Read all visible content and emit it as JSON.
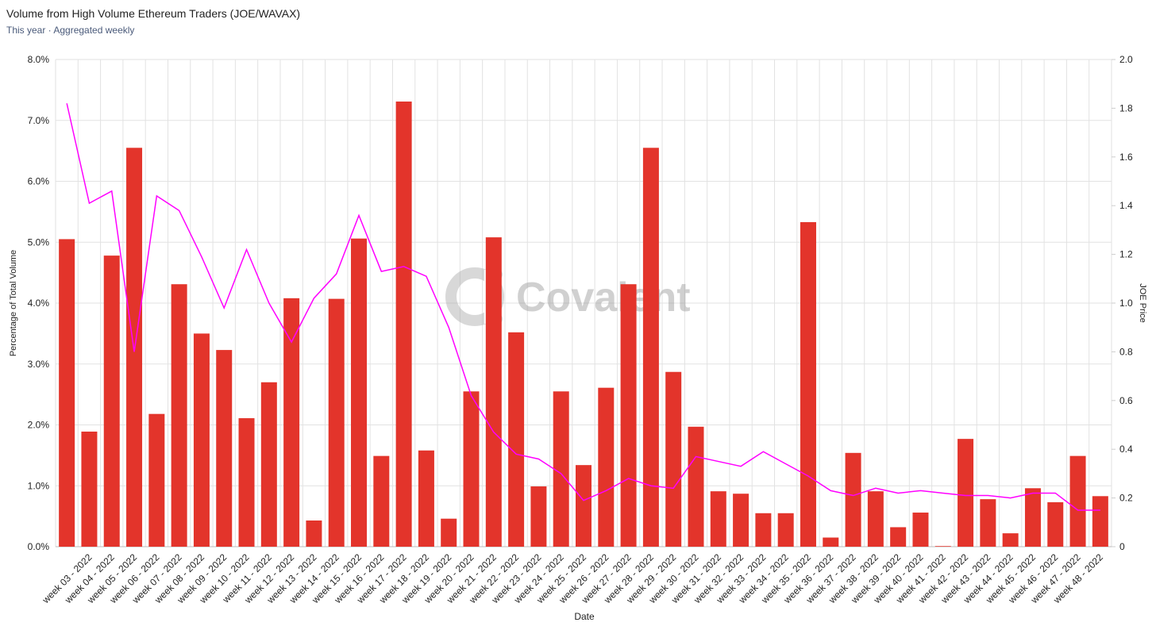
{
  "chart_data": {
    "type": "bar_line",
    "title": "Volume from High Volume Ethereum Traders (JOE/WAVAX)",
    "subtitle": "This year · Aggregated weekly",
    "watermark": "Covalent",
    "xlabel": "Date",
    "ylabel": "Percentage of Total Volume",
    "y2label": "JOE Price",
    "categories": [
      null,
      "week 03 - 2022",
      "week 04 - 2022",
      "week 05 - 2022",
      "week 06 - 2022",
      "week 07 - 2022",
      "week 08 - 2022",
      "week 09 - 2022",
      "week 10 - 2022",
      "week 11 - 2022",
      "week 12 - 2022",
      "week 13 - 2022",
      "week 14 - 2022",
      "week 15 - 2022",
      "week 16 - 2022",
      "week 17 - 2022",
      "week 18 - 2022",
      "week 19 - 2022",
      "week 20 - 2022",
      "week 21 - 2022",
      "week 22 - 2022",
      "week 23 - 2022",
      "week 24 - 2022",
      "week 25 - 2022",
      "week 26 - 2022",
      "week 27 - 2022",
      "week 28 - 2022",
      "week 29 - 2022",
      "week 30 - 2022",
      "week 31 - 2022",
      "week 32 - 2022",
      "week 33 - 2022",
      "week 34 - 2022",
      "week 35 - 2022",
      "week 36 - 2022",
      "week 37 - 2022",
      "week 38 - 2022",
      "week 39 - 2022",
      "week 40 - 2022",
      "week 41 - 2022",
      "week 42 - 2022",
      "week 43 - 2022",
      "week 44 - 2022",
      "week 45 - 2022",
      "week 46 - 2022",
      "week 47 - 2022",
      "week 48 - 2022"
    ],
    "series": [
      {
        "type": "bar",
        "color": "#e3342b",
        "values": [
          5.05,
          1.89,
          4.78,
          6.55,
          2.18,
          4.31,
          3.5,
          3.23,
          2.11,
          2.7,
          4.08,
          0.43,
          4.07,
          5.06,
          1.49,
          7.31,
          1.58,
          0.46,
          2.55,
          5.08,
          3.52,
          0.99,
          2.55,
          1.34,
          2.61,
          4.31,
          6.55,
          2.87,
          1.97,
          0.91,
          0.87,
          0.55,
          0.55,
          5.33,
          0.15,
          1.54,
          0.91,
          0.32,
          0.56,
          0.01,
          1.77,
          0.78,
          0.22,
          0.96,
          0.73,
          1.49,
          0.83
        ]
      },
      {
        "type": "line",
        "axis": "y2",
        "color": "#ff00ff",
        "values": [
          1.82,
          1.41,
          1.46,
          0.8,
          1.44,
          1.38,
          1.19,
          0.98,
          1.22,
          1.0,
          0.84,
          1.02,
          1.12,
          1.36,
          1.13,
          1.15,
          1.11,
          0.9,
          0.62,
          0.47,
          0.38,
          0.36,
          0.3,
          0.19,
          0.23,
          0.28,
          0.25,
          0.24,
          0.37,
          0.35,
          0.33,
          0.39,
          0.34,
          0.29,
          0.23,
          0.21,
          0.24,
          0.22,
          0.23,
          0.22,
          0.21,
          0.21,
          0.2,
          0.22,
          0.22,
          0.15,
          0.15
        ]
      }
    ],
    "ylim": [
      0,
      8
    ],
    "yticks": [
      {
        "value": 0,
        "label": "0.0%"
      },
      {
        "value": 1,
        "label": "1.0%"
      },
      {
        "value": 2,
        "label": "2.0%"
      },
      {
        "value": 3,
        "label": "3.0%"
      },
      {
        "value": 4,
        "label": "4.0%"
      },
      {
        "value": 5,
        "label": "5.0%"
      },
      {
        "value": 6,
        "label": "6.0%"
      },
      {
        "value": 7,
        "label": "7.0%"
      },
      {
        "value": 8,
        "label": "8.0%"
      }
    ],
    "y2lim": [
      0,
      2
    ],
    "y2ticks": [
      0,
      0.2,
      0.4,
      0.6,
      0.8,
      {
        "value": 1,
        "label": "1.0"
      },
      1.2,
      1.4,
      1.6,
      1.8,
      {
        "value": 2,
        "label": "2.0"
      }
    ],
    "grid": true
  }
}
